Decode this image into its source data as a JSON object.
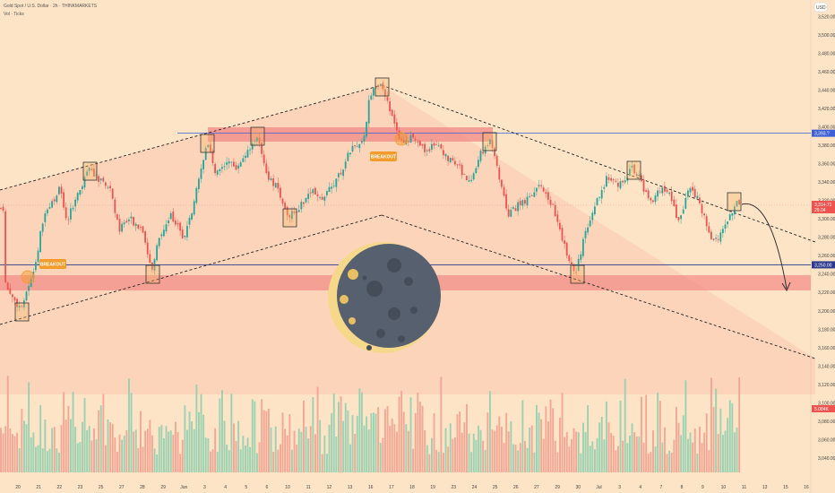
{
  "header": {
    "title": "Gold Spot / U.S. Dollar · 2h · THINKMARKETS",
    "volume_label": "Vol · Ticks"
  },
  "currency_button": "USD",
  "axis": {
    "y_ticks": [
      "3,520.00",
      "3,500.00",
      "3,480.00",
      "3,460.00",
      "3,440.00",
      "3,420.00",
      "3,400.00",
      "3,380.00",
      "3,360.00",
      "3,340.00",
      "3,320.00",
      "3,300.00",
      "3,280.00",
      "3,260.00",
      "3,240.00",
      "3,220.00",
      "3,200.00",
      "3,180.00",
      "3,160.00",
      "3,140.00",
      "3,120.00",
      "3,100.00",
      "3,080.00",
      "3,060.00",
      "3,040.00"
    ],
    "x_ticks": [
      "20",
      "21",
      "22",
      "23",
      "25",
      "27",
      "28",
      "29",
      "Jun",
      "3",
      "4",
      "5",
      "6",
      "10",
      "11",
      "12",
      "13",
      "16",
      "17",
      "18",
      "19",
      "23",
      "24",
      "25",
      "26",
      "27",
      "29",
      "30",
      "Jul",
      "3",
      "4",
      "7",
      "8",
      "9",
      "10",
      "11",
      "13",
      "15",
      "16"
    ]
  },
  "price_tags": {
    "resistance": "3,393.?",
    "current_price": "3,314.71",
    "current_sub": "29.04",
    "support": "3,250.00",
    "volume": "5.084K"
  },
  "annotations": {
    "breakout_1": "BREAKOUT",
    "breakout_2": "BREAKOUT"
  },
  "colors": {
    "background": "#fde4c6",
    "up": "#26a69a",
    "down": "#ef5350",
    "zone": "#f28a85",
    "resistance_line": "#3f5fd6",
    "support_line": "#2f3a8f",
    "breakout_tag": "#f39c2c",
    "moon_dark": "#57606f",
    "moon_light": "#f5d88a"
  },
  "chart_data": {
    "type": "candlestick",
    "title": "Gold Spot / U.S. Dollar · 2h · THINKMARKETS",
    "ylim": [
      3040,
      3530
    ],
    "horizontal_levels": {
      "resistance": 3393,
      "support": 3250,
      "current": 3314.71
    },
    "key_points": [
      {
        "x": "20",
        "y": 3210
      },
      {
        "x": "22",
        "y": 3290
      },
      {
        "x": "24",
        "y": 3355
      },
      {
        "x": "28",
        "y": 3255
      },
      {
        "x": "30",
        "y": 3380
      },
      {
        "x": "Jun 5",
        "y": 3400
      },
      {
        "x": "Jun 9",
        "y": 3300
      },
      {
        "x": "Jun 12",
        "y": 3370
      },
      {
        "x": "Jun 13",
        "y": 3445
      },
      {
        "x": "Jun 16",
        "y": 3390
      },
      {
        "x": "Jun 20",
        "y": 3350
      },
      {
        "x": "Jun 23",
        "y": 3395
      },
      {
        "x": "Jun 24",
        "y": 3320
      },
      {
        "x": "Jun 26",
        "y": 3340
      },
      {
        "x": "Jun 29",
        "y": 3250
      },
      {
        "x": "Jul 1",
        "y": 3345
      },
      {
        "x": "Jul 3",
        "y": 3360
      },
      {
        "x": "Jul 4",
        "y": 3330
      },
      {
        "x": "Jul 7",
        "y": 3300
      },
      {
        "x": "Jul 9",
        "y": 3285
      },
      {
        "x": "Jul 10",
        "y": 3330
      },
      {
        "x": "Jul 11",
        "y": 3314
      }
    ],
    "projection": [
      {
        "x": "Jul 11",
        "y": 3320
      },
      {
        "x": "Jul 15",
        "y": 3240
      }
    ],
    "volume_range": [
      0,
      5.2
    ]
  }
}
